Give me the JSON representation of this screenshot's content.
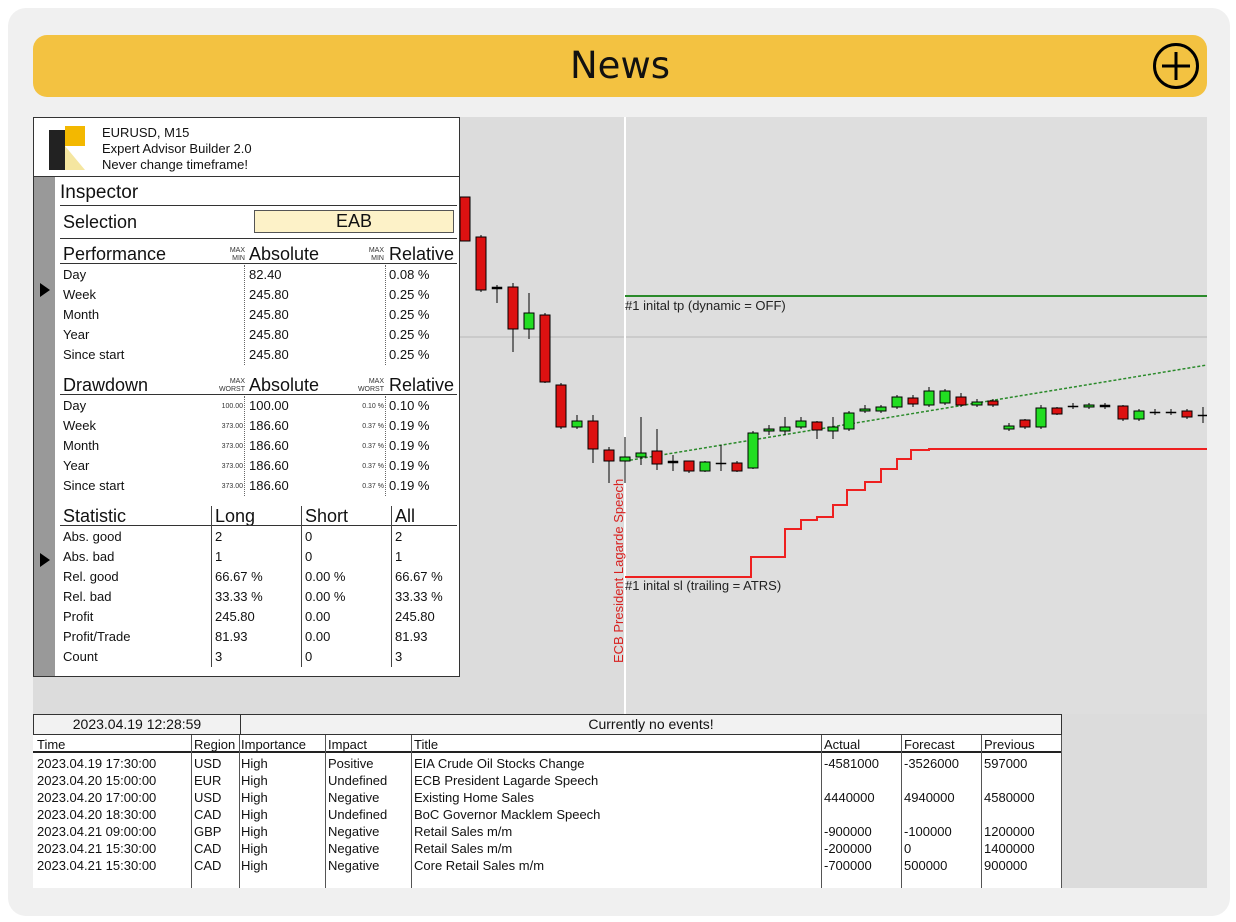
{
  "header": {
    "title": "News",
    "add_icon": "plus-circle-icon"
  },
  "info": {
    "symbol": "EURUSD, M15",
    "product": "Expert Advisor Builder 2.0",
    "note": "Never change timeframe!"
  },
  "inspector": {
    "title": "Inspector",
    "selection_label": "Selection",
    "selection_value": "EAB",
    "performance": {
      "heading": "Performance",
      "col_max": "MAX",
      "col_min": "MIN",
      "absolute": "Absolute",
      "relative": "Relative",
      "rows": [
        {
          "label": "Day",
          "abs": "82.40",
          "rel": "0.08 %"
        },
        {
          "label": "Week",
          "abs": "245.80",
          "rel": "0.25 %"
        },
        {
          "label": "Month",
          "abs": "245.80",
          "rel": "0.25 %"
        },
        {
          "label": "Year",
          "abs": "245.80",
          "rel": "0.25 %"
        },
        {
          "label": "Since start",
          "abs": "245.80",
          "rel": "0.25 %"
        }
      ]
    },
    "drawdown": {
      "heading": "Drawdown",
      "col_max": "MAX",
      "col_worst": "WORST",
      "absolute": "Absolute",
      "relative": "Relative",
      "rows": [
        {
          "label": "Day",
          "worst_abs": "100.00",
          "abs": "100.00",
          "worst_rel": "0.10 %",
          "rel": "0.10 %"
        },
        {
          "label": "Week",
          "worst_abs": "373.00",
          "abs": "186.60",
          "worst_rel": "0.37 %",
          "rel": "0.19 %"
        },
        {
          "label": "Month",
          "worst_abs": "373.00",
          "abs": "186.60",
          "worst_rel": "0.37 %",
          "rel": "0.19 %"
        },
        {
          "label": "Year",
          "worst_abs": "373.00",
          "abs": "186.60",
          "worst_rel": "0.37 %",
          "rel": "0.19 %"
        },
        {
          "label": "Since start",
          "worst_abs": "373.00",
          "abs": "186.60",
          "worst_rel": "0.37 %",
          "rel": "0.19 %"
        }
      ]
    },
    "statistic": {
      "heading": "Statistic",
      "long": "Long",
      "short": "Short",
      "all": "All",
      "rows": [
        {
          "label": "Abs. good",
          "long": "2",
          "short": "0",
          "all": "2"
        },
        {
          "label": "Abs. bad",
          "long": "1",
          "short": "0",
          "all": "1"
        },
        {
          "label": "Rel. good",
          "long": "66.67 %",
          "short": "0.00 %",
          "all": "66.67 %"
        },
        {
          "label": "Rel. bad",
          "long": "33.33 %",
          "short": "0.00 %",
          "all": "33.33 %"
        },
        {
          "label": "Profit",
          "long": "245.80",
          "short": "0.00",
          "all": "245.80"
        },
        {
          "label": "Profit/Trade",
          "long": "81.93",
          "short": "0.00",
          "all": "81.93"
        },
        {
          "label": "Count",
          "long": "3",
          "short": "0",
          "all": "3"
        }
      ]
    }
  },
  "chart": {
    "tp_label": "#1 inital tp (dynamic = OFF)",
    "sl_label": "#1 inital sl (trailing = ATRS)",
    "event_label": "ECB President Lagarde Speech",
    "colors": {
      "bull": "#22dd22",
      "bear": "#dd1111",
      "tp": "#2a8a2a",
      "sl": "#ee2020",
      "event": "#d8201f"
    }
  },
  "news": {
    "clock": "2023.04.19 12:28:59",
    "status": "Currently no events!",
    "columns": [
      "Time",
      "Region",
      "Importance",
      "Impact",
      "Title",
      "Actual",
      "Forecast",
      "Previous"
    ],
    "rows": [
      {
        "time": "2023.04.19 17:30:00",
        "region": "USD",
        "importance": "High",
        "impact": "Positive",
        "title": "EIA Crude Oil Stocks Change",
        "actual": "-4581000",
        "forecast": "-3526000",
        "previous": "597000"
      },
      {
        "time": "2023.04.20 15:00:00",
        "region": "EUR",
        "importance": "High",
        "impact": "Undefined",
        "title": "ECB President Lagarde Speech",
        "actual": "",
        "forecast": "",
        "previous": ""
      },
      {
        "time": "2023.04.20 17:00:00",
        "region": "USD",
        "importance": "High",
        "impact": "Negative",
        "title": "Existing Home Sales",
        "actual": "4440000",
        "forecast": "4940000",
        "previous": "4580000"
      },
      {
        "time": "2023.04.20 18:30:00",
        "region": "CAD",
        "importance": "High",
        "impact": "Undefined",
        "title": "BoC Governor Macklem Speech",
        "actual": "",
        "forecast": "",
        "previous": ""
      },
      {
        "time": "2023.04.21 09:00:00",
        "region": "GBP",
        "importance": "High",
        "impact": "Negative",
        "title": "Retail Sales m/m",
        "actual": "-900000",
        "forecast": "-100000",
        "previous": "1200000"
      },
      {
        "time": "2023.04.21 15:30:00",
        "region": "CAD",
        "importance": "High",
        "impact": "Negative",
        "title": "Retail Sales m/m",
        "actual": "-200000",
        "forecast": "0",
        "previous": "1400000"
      },
      {
        "time": "2023.04.21 15:30:00",
        "region": "CAD",
        "importance": "High",
        "impact": "Negative",
        "title": "Core Retail Sales m/m",
        "actual": "-700000",
        "forecast": "500000",
        "previous": "900000"
      }
    ]
  }
}
